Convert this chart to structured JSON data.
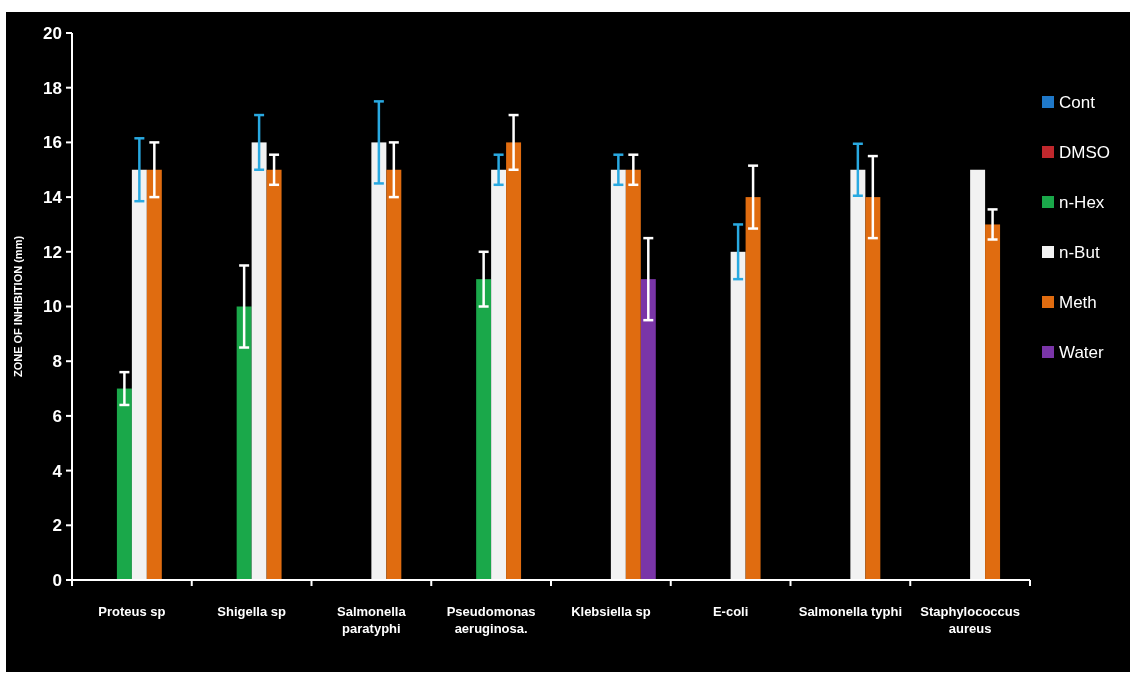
{
  "chart_data": {
    "type": "bar",
    "ylabel": "ZONE OF INHIBITION  (mm)",
    "categories": [
      "Proteus sp",
      "Shigella sp",
      "Salmonella paratyphi",
      "Pseudomonas aeruginosa.",
      "Klebsiella sp",
      "E-coli",
      "Salmonella typhi",
      "Staphylococcus aureus"
    ],
    "series": [
      {
        "name": "Cont",
        "color": "#1f78c8",
        "values": [
          null,
          null,
          null,
          null,
          null,
          null,
          null,
          null
        ]
      },
      {
        "name": "DMSO",
        "color": "#c0282d",
        "values": [
          null,
          null,
          null,
          null,
          null,
          null,
          null,
          null
        ]
      },
      {
        "name": "n-Hex",
        "color": "#1aa84a",
        "values": [
          7,
          10,
          null,
          11,
          null,
          null,
          null,
          null
        ],
        "errors": [
          0.6,
          1.5,
          null,
          1,
          null,
          null,
          null,
          null
        ]
      },
      {
        "name": "n-But",
        "color": "#f2f2f2",
        "values": [
          15,
          16,
          16,
          15,
          15,
          12,
          15,
          15
        ],
        "errors": [
          1.15,
          1,
          1.5,
          0.55,
          0.55,
          1,
          0.95,
          null
        ]
      },
      {
        "name": "Meth",
        "color": "#e06c10",
        "values": [
          15,
          15,
          15,
          16,
          15,
          14,
          14,
          13
        ],
        "errors": [
          1,
          0.55,
          1,
          1,
          0.55,
          1.15,
          1.5,
          0.55
        ]
      },
      {
        "name": "Water",
        "color": "#7a35a8",
        "values": [
          null,
          null,
          null,
          null,
          11,
          null,
          null,
          null
        ],
        "errors": [
          null,
          null,
          null,
          null,
          1.5,
          null,
          null,
          null
        ]
      }
    ],
    "ylim": [
      0,
      20
    ],
    "yticks": [
      0,
      2,
      4,
      6,
      8,
      10,
      12,
      14,
      16,
      18,
      20
    ],
    "grid": false,
    "legend": "right"
  }
}
